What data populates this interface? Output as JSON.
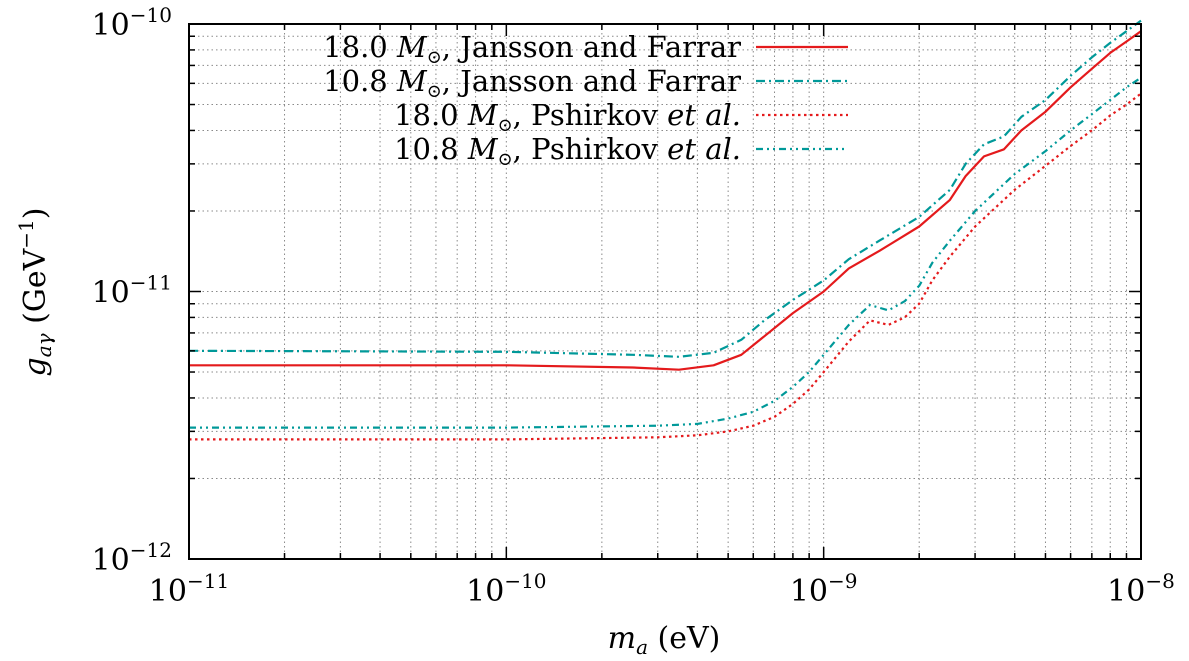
{
  "chart_data": {
    "type": "line",
    "xscale": "log",
    "yscale": "log",
    "xlim": [
      1e-11,
      1e-08
    ],
    "ylim": [
      1e-12,
      1e-10
    ],
    "xlabel": "m_a (eV)",
    "ylabel": "g_aγ (GeV^-1)",
    "grid": true,
    "legend_position": "top-center",
    "x_ticks": [
      {
        "value": 1e-11,
        "label": "10",
        "exp": "−11"
      },
      {
        "value": 1e-10,
        "label": "10",
        "exp": "−10"
      },
      {
        "value": 1e-09,
        "label": "10",
        "exp": "−9"
      },
      {
        "value": 1e-08,
        "label": "10",
        "exp": "−8"
      }
    ],
    "y_ticks": [
      {
        "value": 1e-12,
        "label": "10",
        "exp": "−12"
      },
      {
        "value": 1e-11,
        "label": "10",
        "exp": "−11"
      },
      {
        "value": 1e-10,
        "label": "10",
        "exp": "−10"
      }
    ],
    "series": [
      {
        "name": "18.0 M⊙, Jansson and Farrar",
        "mass": "18.0",
        "model": "Jansson and Farrar",
        "model_italic": "",
        "color": "#e41a1c",
        "style": "solid",
        "x": [
          1e-11,
          1e-10,
          2.5e-10,
          3.5e-10,
          4.5e-10,
          5.5e-10,
          6.5e-10,
          8e-10,
          1e-09,
          1.2e-09,
          1.5e-09,
          2e-09,
          2.5e-09,
          2.8e-09,
          3.2e-09,
          3.7e-09,
          4.2e-09,
          5e-09,
          6e-09,
          7e-09,
          8e-09,
          9e-09,
          1e-08
        ],
        "y": [
          5.3e-12,
          5.3e-12,
          5.2e-12,
          5.1e-12,
          5.3e-12,
          5.8e-12,
          6.8e-12,
          8.3e-12,
          1e-11,
          1.22e-11,
          1.42e-11,
          1.75e-11,
          2.2e-11,
          2.7e-11,
          3.2e-11,
          3.4e-11,
          4e-11,
          4.7e-11,
          5.8e-11,
          6.8e-11,
          7.8e-11,
          8.6e-11,
          9.4e-11
        ]
      },
      {
        "name": "10.8 M⊙, Jansson and Farrar",
        "mass": "10.8",
        "model": "Jansson and Farrar",
        "model_italic": "",
        "color": "#009999",
        "style": "dashdot",
        "x": [
          1e-11,
          1e-10,
          2.5e-10,
          3.5e-10,
          4.5e-10,
          5.5e-10,
          6.5e-10,
          8e-10,
          1e-09,
          1.2e-09,
          1.5e-09,
          2e-09,
          2.5e-09,
          2.8e-09,
          3.2e-09,
          3.7e-09,
          4.2e-09,
          5e-09,
          6e-09,
          7e-09,
          8e-09,
          9e-09,
          1e-08
        ],
        "y": [
          6e-12,
          5.95e-12,
          5.8e-12,
          5.7e-12,
          5.9e-12,
          6.6e-12,
          7.8e-12,
          9.3e-12,
          1.1e-11,
          1.32e-11,
          1.55e-11,
          1.9e-11,
          2.4e-11,
          3e-11,
          3.55e-11,
          3.8e-11,
          4.5e-11,
          5.2e-11,
          6.4e-11,
          7.5e-11,
          8.5e-11,
          9.4e-11,
          1.03e-10
        ]
      },
      {
        "name": "18.0 M⊙, Pshirkov et al.",
        "mass": "18.0",
        "model": "Pshirkov",
        "model_italic": "et al.",
        "color": "#e41a1c",
        "style": "dotted",
        "x": [
          1e-11,
          1e-10,
          3e-10,
          4e-10,
          5e-10,
          6e-10,
          7e-10,
          8e-10,
          9e-10,
          1e-09,
          1.2e-09,
          1.4e-09,
          1.6e-09,
          1.8e-09,
          2e-09,
          2.2e-09,
          2.5e-09,
          3e-09,
          4e-09,
          5e-09,
          6e-09,
          7e-09,
          8e-09,
          9e-09,
          1e-08
        ],
        "y": [
          2.8e-12,
          2.8e-12,
          2.85e-12,
          2.9e-12,
          3e-12,
          3.15e-12,
          3.4e-12,
          3.8e-12,
          4.3e-12,
          5e-12,
          6.5e-12,
          7.8e-12,
          7.5e-12,
          8e-12,
          9e-12,
          1.1e-11,
          1.35e-11,
          1.75e-11,
          2.4e-11,
          2.95e-11,
          3.5e-11,
          4e-11,
          4.55e-11,
          5e-11,
          5.5e-11
        ]
      },
      {
        "name": "10.8 M⊙, Pshirkov et al.",
        "mass": "10.8",
        "model": "Pshirkov",
        "model_italic": "et al.",
        "color": "#009999",
        "style": "dashdotdot",
        "x": [
          1e-11,
          1e-10,
          3e-10,
          4e-10,
          5e-10,
          6e-10,
          7e-10,
          8e-10,
          9e-10,
          1e-09,
          1.2e-09,
          1.4e-09,
          1.6e-09,
          1.8e-09,
          2e-09,
          2.2e-09,
          2.5e-09,
          3e-09,
          4e-09,
          5e-09,
          6e-09,
          7e-09,
          8e-09,
          9e-09,
          1e-08
        ],
        "y": [
          3.1e-12,
          3.1e-12,
          3.15e-12,
          3.2e-12,
          3.35e-12,
          3.55e-12,
          3.9e-12,
          4.4e-12,
          5e-12,
          5.8e-12,
          7.5e-12,
          8.9e-12,
          8.5e-12,
          9.2e-12,
          1.05e-11,
          1.28e-11,
          1.55e-11,
          2e-11,
          2.75e-11,
          3.35e-11,
          4e-11,
          4.6e-11,
          5.2e-11,
          5.8e-11,
          6.3e-11
        ]
      }
    ]
  },
  "labels": {
    "x_main": "m",
    "x_sub": "a",
    "x_unit": " (eV)",
    "y_main": "g",
    "y_sub": "aγ",
    "y_unit_open": " (GeV",
    "y_unit_exp": "−1",
    "y_unit_close": ")",
    "sun_symbol": "M",
    "sun_sub": "⊙"
  }
}
